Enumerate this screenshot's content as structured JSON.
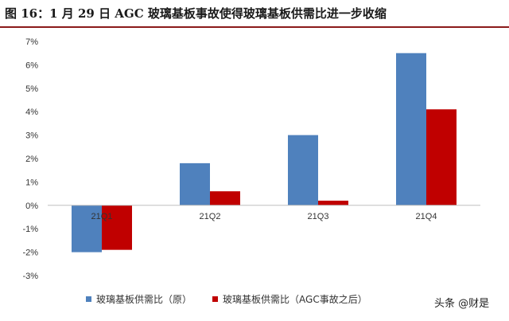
{
  "figure_title": "图 16：1 月 29 日 AGC 玻璃基板事故使得玻璃基板供需比进一步收缩",
  "watermark": "头条 @财是",
  "chart_data": {
    "type": "bar",
    "categories": [
      "21Q1",
      "21Q2",
      "21Q3",
      "21Q4"
    ],
    "series": [
      {
        "name": "玻璃基板供需比（原）",
        "values": [
          -2.0,
          1.8,
          3.0,
          6.5
        ],
        "color": "#4F81BD"
      },
      {
        "name": "玻璃基板供需比（AGC事故之后）",
        "values": [
          -1.9,
          0.6,
          0.2,
          4.1
        ],
        "color": "#C00000"
      }
    ],
    "ylim": [
      -3,
      7
    ],
    "yticks": [
      "-3%",
      "-2%",
      "-1%",
      "0%",
      "1%",
      "2%",
      "3%",
      "4%",
      "5%",
      "6%",
      "7%"
    ],
    "grid": false,
    "legend": "bottom"
  }
}
